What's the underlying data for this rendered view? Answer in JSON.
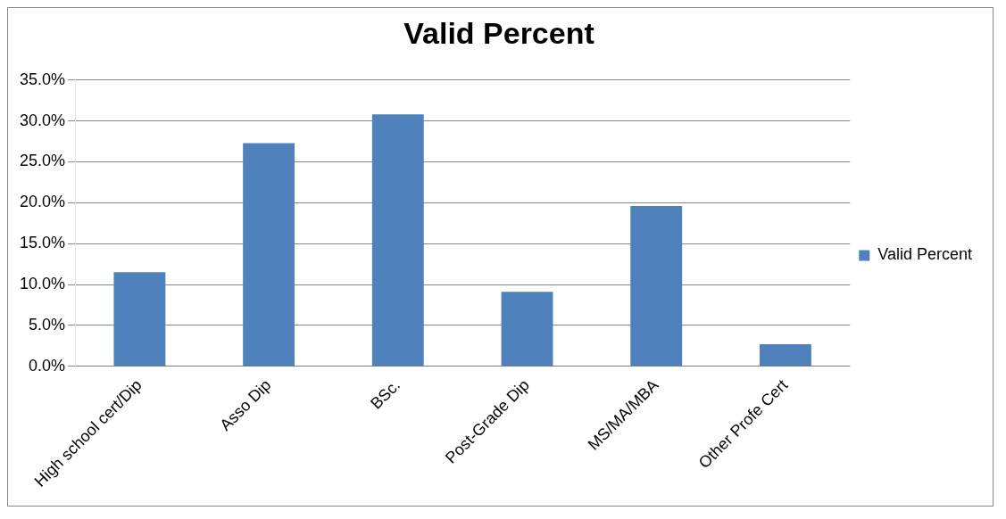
{
  "chart_data": {
    "type": "bar",
    "title": "Valid Percent",
    "categories": [
      "High school cert/Dip",
      "Asso Dip",
      "BSc.",
      "Post-Grade Dip",
      "MS/MA/MBA",
      "Other Profe Cert"
    ],
    "series": [
      {
        "name": "Valid Percent",
        "color": "#4f81bd",
        "values": [
          11.5,
          27.3,
          30.8,
          9.1,
          19.6,
          2.7
        ]
      }
    ],
    "ylim": [
      0,
      35
    ],
    "yticks": [
      {
        "value": 0,
        "label": "0.0%"
      },
      {
        "value": 5,
        "label": "5.0%"
      },
      {
        "value": 10,
        "label": "10.0%"
      },
      {
        "value": 15,
        "label": "15.0%"
      },
      {
        "value": 20,
        "label": "20.0%"
      },
      {
        "value": 25,
        "label": "25.0%"
      },
      {
        "value": 30,
        "label": "30.0%"
      },
      {
        "value": 35,
        "label": "35.0%"
      }
    ],
    "grid": "y",
    "legend": "right"
  }
}
